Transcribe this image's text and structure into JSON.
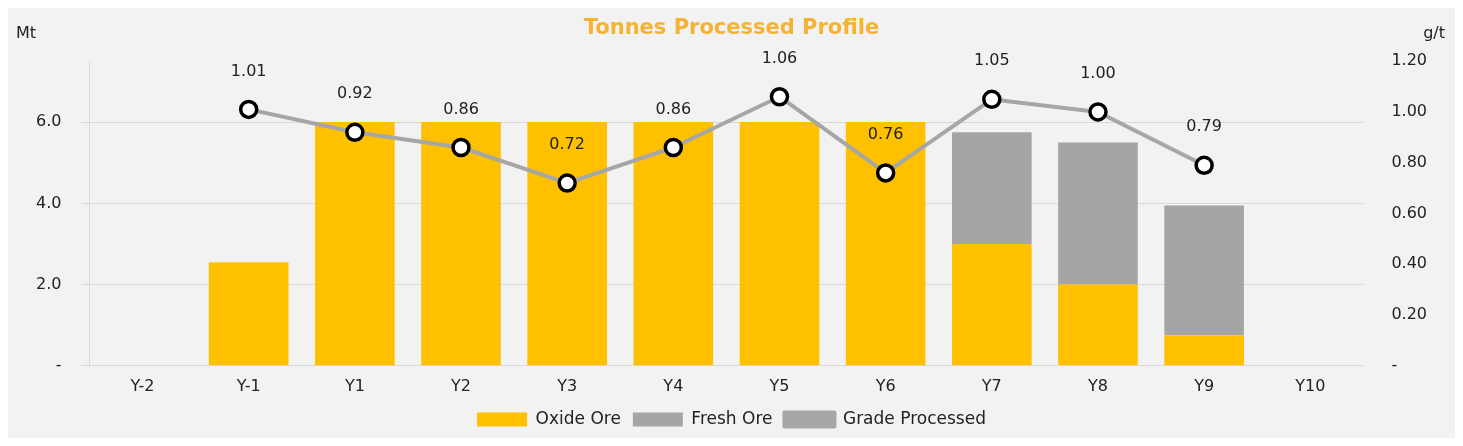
{
  "chart_data": {
    "type": "bar",
    "title": "Tonnes Processed Profile",
    "ylabel": "Mt",
    "y2label": "g/t",
    "categories": [
      "Y-2",
      "Y-1",
      "Y1",
      "Y2",
      "Y3",
      "Y4",
      "Y5",
      "Y6",
      "Y7",
      "Y8",
      "Y9",
      "Y10"
    ],
    "stacked": true,
    "series": [
      {
        "name": "Oxide Ore",
        "color": "#ffc000",
        "values": [
          null,
          2.55,
          6.0,
          6.0,
          6.0,
          6.0,
          6.0,
          6.0,
          3.0,
          2.0,
          0.75,
          null
        ]
      },
      {
        "name": "Fresh Ore",
        "color": "#a5a5a5",
        "values": [
          null,
          null,
          null,
          null,
          null,
          null,
          null,
          null,
          2.75,
          3.5,
          3.2,
          null
        ]
      },
      {
        "name": "Grade Processed",
        "type": "line",
        "axis": "y2",
        "color": "#a6a6a6",
        "marker": "circle",
        "values": [
          null,
          1.01,
          0.92,
          0.86,
          0.72,
          0.86,
          1.06,
          0.76,
          1.05,
          1.0,
          0.79,
          null
        ],
        "value_labels": [
          null,
          "1.01",
          "0.92",
          "0.86",
          "0.72",
          "0.86",
          "1.06",
          "0.76",
          "1.05",
          "1.00",
          "0.79",
          null
        ]
      }
    ],
    "ylim": [
      0,
      7.5
    ],
    "yticks": [
      {
        "value": 0,
        "label": "-"
      },
      {
        "value": 2,
        "label": "2.0"
      },
      {
        "value": 4,
        "label": "4.0"
      },
      {
        "value": 6,
        "label": "6.0"
      }
    ],
    "y2lim": [
      0,
      1.2
    ],
    "y2ticks": [
      {
        "value": 0,
        "label": "-"
      },
      {
        "value": 0.2,
        "label": "0.20"
      },
      {
        "value": 0.4,
        "label": "0.40"
      },
      {
        "value": 0.6,
        "label": "0.60"
      },
      {
        "value": 0.8,
        "label": "0.80"
      },
      {
        "value": 1,
        "label": "1.00"
      },
      {
        "value": 1.2,
        "label": "1.20"
      }
    ],
    "grid": "y",
    "legend": "bottom"
  }
}
